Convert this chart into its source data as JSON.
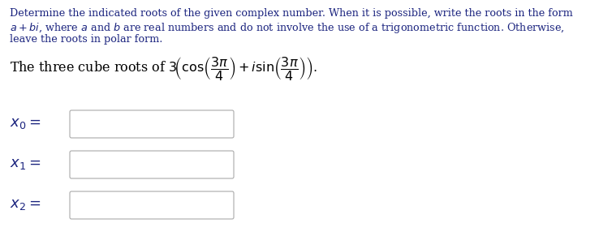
{
  "bg_color": "#ffffff",
  "text_color": "#1a237e",
  "paragraph_lines": [
    "Determine the indicated roots of the given complex number. When it is possible, write the roots in the form",
    "$a + bi$, where $a$ and $b$ are real numbers and do not involve the use of a trigonometric function. Otherwise,",
    "leave the roots in polar form."
  ],
  "math_line": "The three cube roots of $3\\!\\left(\\cos\\!\\left(\\dfrac{3\\pi}{4}\\right) + i\\sin\\!\\left(\\dfrac{3\\pi}{4}\\right)\\right).$",
  "labels": [
    "$x_0 =$",
    "$x_1 =$",
    "$x_2 =$"
  ],
  "text_color_labels": "#1a5276",
  "font_size_paragraph": 9.2,
  "font_size_math_line": 11.5,
  "font_size_labels": 13,
  "box_edge_color": "#aaaaaa",
  "box_face_color": "#ffffff"
}
